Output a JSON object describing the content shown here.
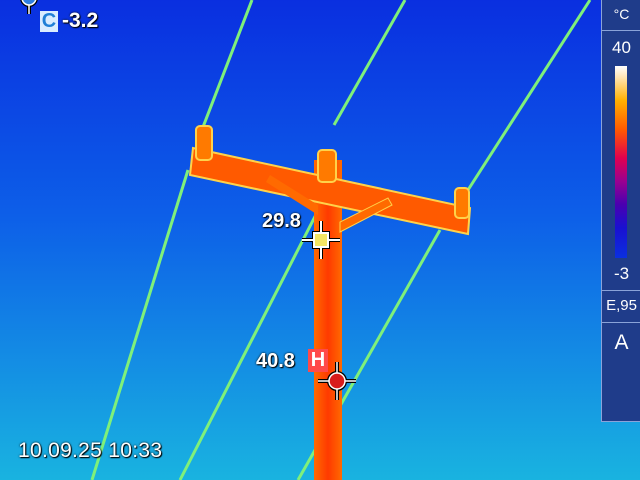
{
  "image": {
    "cold_spot": {
      "badge": "C",
      "value": "-3.2"
    },
    "center_spot": {
      "value": "29.8"
    },
    "hot_spot": {
      "value": "40.8",
      "badge": "H"
    },
    "timestamp": "10.09.25 10:33"
  },
  "palette": {
    "unit": "°C",
    "max": "40",
    "min": "-3",
    "emissivity": "E,95",
    "mode": "A"
  },
  "colors": {
    "sky_top": "#0a2fe0",
    "sky_bottom": "#19b3e0",
    "hot": "#ff3a00",
    "wire": "#7ff07a",
    "panel": "#1f3c8a"
  }
}
